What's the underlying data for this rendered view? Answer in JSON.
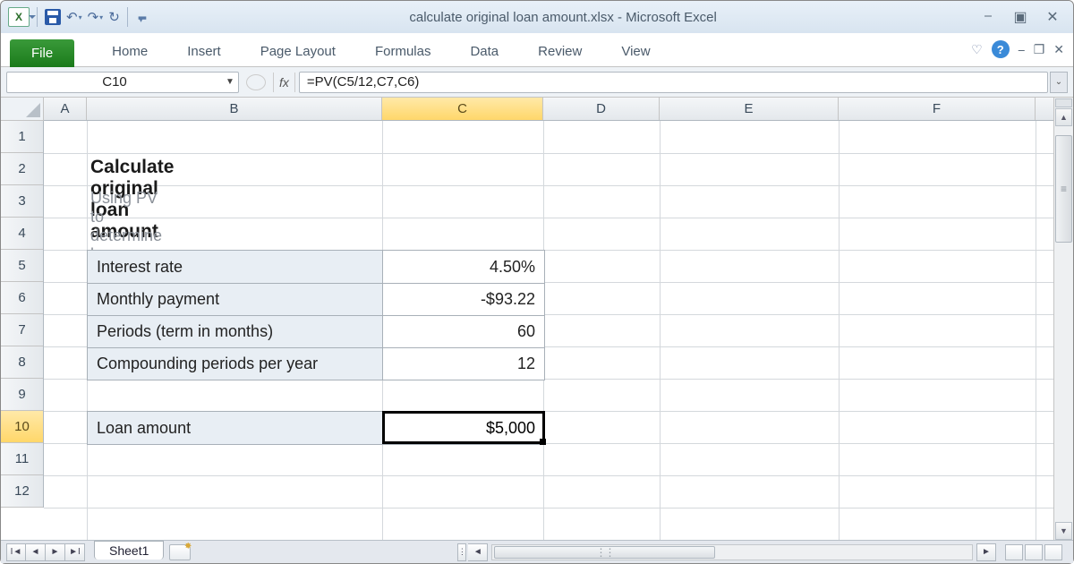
{
  "title": "calculate original loan amount.xlsx - Microsoft Excel",
  "ribbon": {
    "file": "File",
    "tabs": [
      "Home",
      "Insert",
      "Page Layout",
      "Formulas",
      "Data",
      "Review",
      "View"
    ]
  },
  "namebox": "C10",
  "formula": "=PV(C5/12,C7,C6)",
  "columns": {
    "labels": [
      "A",
      "B",
      "C",
      "D",
      "E",
      "F"
    ],
    "widths": [
      48,
      330,
      180,
      130,
      200,
      220
    ],
    "selected": "C"
  },
  "rows": {
    "count": 12,
    "height": 36,
    "selected": 10
  },
  "content": {
    "heading": "Calculate original loan amount",
    "subheading": "Using PV to determine loan amount",
    "table1": {
      "rows": [
        {
          "label": "Interest rate",
          "value": "4.50%"
        },
        {
          "label": "Monthly payment",
          "value": "-$93.22"
        },
        {
          "label": "Periods (term in months)",
          "value": "60"
        },
        {
          "label": "Compounding periods per year",
          "value": "12"
        }
      ]
    },
    "table2": {
      "rows": [
        {
          "label": "Loan amount",
          "value": "$5,000"
        }
      ]
    }
  },
  "selected_cell": {
    "col": "C",
    "row": 10
  },
  "sheet_tab": "Sheet1",
  "colors": {
    "file_tab": "#1a7a1a",
    "label_fill": "#e8eef4",
    "header_sel": "#ffd76a"
  }
}
